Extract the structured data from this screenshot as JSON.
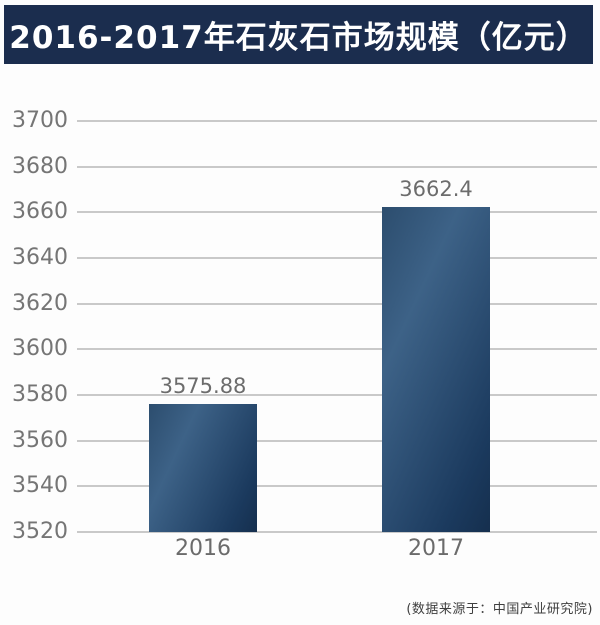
{
  "header": {
    "title": "2016-2017年石灰石市场规模（亿元）"
  },
  "footer": {
    "source": "(数据来源于：中国产业研究院)"
  },
  "colors": {
    "banner_bg": "#1b2d4e",
    "banner_text": "#ffffff",
    "bar_dark": "#16304f",
    "bar_light": "#3d6287",
    "gridline": "#c9c9c9",
    "axis_label": "#757575",
    "value_label": "#6c6c6c",
    "background": "#fdfdfd"
  },
  "chart_data": {
    "type": "bar",
    "title": "2016-2017年石灰石市场规模（亿元）",
    "categories": [
      "2016",
      "2017"
    ],
    "values": [
      3575.88,
      3662.4
    ],
    "value_labels": [
      "3575.88",
      "3662.4"
    ],
    "xlabel": "",
    "ylabel": "",
    "ylim": [
      3520,
      3700
    ],
    "ytick_step": 20,
    "yticks": [
      3520,
      3540,
      3560,
      3580,
      3600,
      3620,
      3640,
      3660,
      3680,
      3700
    ],
    "grid": true,
    "legend": false,
    "source_note": "(数据来源于：中国产业研究院)"
  }
}
